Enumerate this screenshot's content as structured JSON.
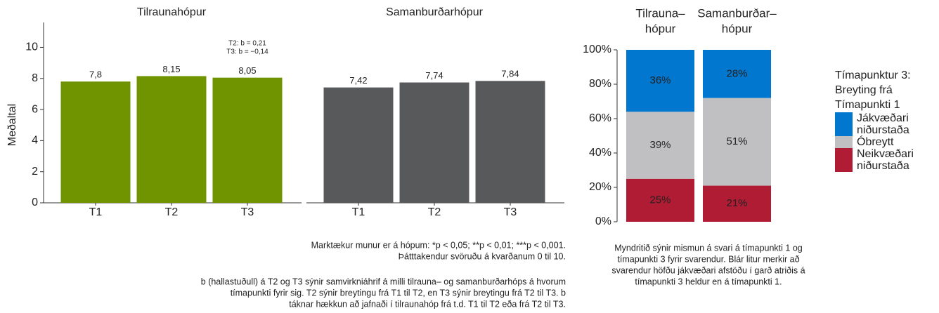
{
  "chart_data": [
    {
      "type": "bar",
      "ylabel": "Meðaltal",
      "categories": [
        "T1",
        "T2",
        "T3"
      ],
      "series": [
        {
          "name": "Tilraunahópur",
          "color": "#6f9400",
          "values": [
            7.8,
            8.15,
            8.05
          ],
          "value_labels": [
            "7,8",
            "8,15",
            "8,05"
          ]
        },
        {
          "name": "Samanburðarhópur",
          "color": "#58595b",
          "values": [
            7.42,
            7.74,
            7.84
          ],
          "value_labels": [
            "7,42",
            "7,74",
            "7,84"
          ]
        }
      ],
      "ylim": [
        0,
        11.6
      ],
      "yticks": [
        0,
        2,
        4,
        6,
        8,
        10
      ],
      "annotation": [
        "T2: b = 0,21",
        "T3: b = −0,14"
      ],
      "caption": [
        [
          "Marktækur munur er á hópum: *p < 0,05; **p < 0,01; ***p < 0,001.",
          "Þátttakendur svöruðu á kvarðanum 0 til 10."
        ],
        [
          "b (hallastuðull) á T2 og T3 sýnir samvirkniáhrif á milli tilrauna– og samanburðarhóps á hvorum",
          "tímapunkti fyrir sig. T2 sýnir breytingu frá T1 til T2, en T3 sýnir breytingu frá T2 til T3. b",
          "táknar hækkun að jafnaði í tilraunahóp frá t.d. T1 til T2 eða frá T2 til T3."
        ]
      ]
    },
    {
      "type": "stacked_bar",
      "categories": [
        [
          "Tilrauna–",
          "hópur"
        ],
        [
          "Samanburðar–",
          "hópur"
        ]
      ],
      "series": [
        {
          "name": "Jákvæðari niðurstaða",
          "color": "#0277d0",
          "values": [
            36,
            28
          ],
          "value_labels": [
            "36%",
            "28%"
          ]
        },
        {
          "name": "Óbreytt",
          "color": "#c0c0c2",
          "values": [
            39,
            51
          ],
          "value_labels": [
            "39%",
            "51%"
          ]
        },
        {
          "name": "Neikvæðari niðurstaða",
          "color": "#b01c34",
          "values": [
            25,
            21
          ],
          "value_labels": [
            "25%",
            "21%"
          ]
        }
      ],
      "ylim": [
        0,
        100
      ],
      "yticks": [
        {
          "value": 0,
          "label": "0%"
        },
        {
          "value": 20,
          "label": "20%"
        },
        {
          "value": 40,
          "label": "40%"
        },
        {
          "value": 60,
          "label": "60%"
        },
        {
          "value": 80,
          "label": "80%"
        },
        {
          "value": 100,
          "label": "100%"
        }
      ],
      "legend_title": [
        "Tímapunktur 3:",
        "Breyting frá",
        "Tímapunkti 1"
      ],
      "caption": [
        "Myndritið sýnir mismun á svari á tímapunkti 1 og",
        "tímapunkti 3 fyrir svarendur. Blár litur merkir að",
        "svarendur höfðu jákvæðari afstöðu í garð atriðis á",
        "tímapunkti 3 heldur en á tímapunkti 1."
      ]
    }
  ]
}
